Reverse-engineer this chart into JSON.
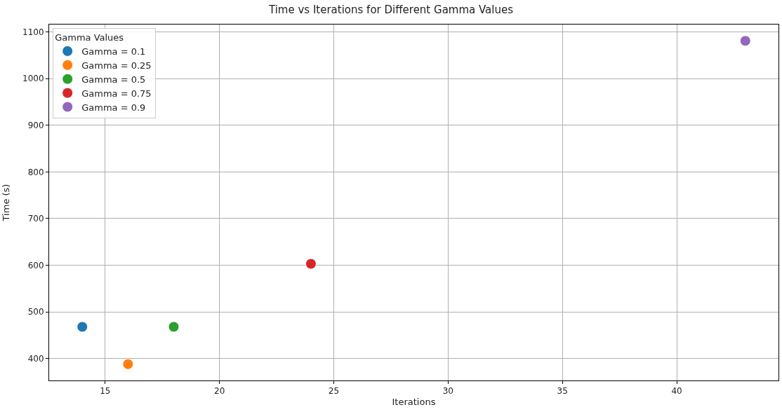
{
  "chart_data": {
    "type": "scatter",
    "title": "Time vs Iterations for Different Gamma Values",
    "xlabel": "Iterations",
    "ylabel": "Time (s)",
    "legend_title": "Gamma Values",
    "series": [
      {
        "name": "Gamma = 0.1",
        "color": "#1f77b4",
        "x": [
          14
        ],
        "values": [
          468
        ]
      },
      {
        "name": "Gamma = 0.25",
        "color": "#ff7f0e",
        "x": [
          16
        ],
        "values": [
          388
        ]
      },
      {
        "name": "Gamma = 0.5",
        "color": "#2ca02c",
        "x": [
          18
        ],
        "values": [
          468
        ]
      },
      {
        "name": "Gamma = 0.75",
        "color": "#d62728",
        "x": [
          24
        ],
        "values": [
          603
        ]
      },
      {
        "name": "Gamma = 0.9",
        "color": "#9467bd",
        "x": [
          43
        ],
        "values": [
          1081
        ]
      }
    ],
    "xlim": [
      12.55,
      44.45
    ],
    "ylim": [
      353,
      1116
    ],
    "xticks": [
      15,
      20,
      25,
      30,
      35,
      40
    ],
    "yticks": [
      400,
      500,
      600,
      700,
      800,
      900,
      1000,
      1100
    ],
    "grid": true,
    "legend": "top left",
    "marker": "circle"
  }
}
